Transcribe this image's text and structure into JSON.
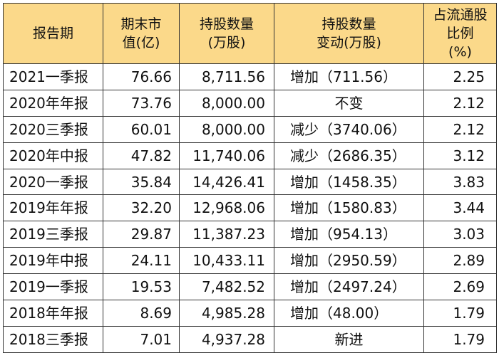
{
  "table": {
    "headers": [
      [
        "报告期"
      ],
      [
        "期末市",
        "值(亿)"
      ],
      [
        "持股数量",
        "(万股)"
      ],
      [
        "持股数量",
        "变动(万股)"
      ],
      [
        "占流通股",
        "比例",
        "(%)"
      ]
    ],
    "rows": [
      {
        "period": "2021一季报",
        "value": "76.66",
        "shares": "8,711.56",
        "change": "增加（711.56）",
        "ratio": "2.25"
      },
      {
        "period": "2020年年报",
        "value": "73.76",
        "shares": "8,000.00",
        "change": "不变",
        "ratio": "2.12"
      },
      {
        "period": "2020三季报",
        "value": "60.01",
        "shares": "8,000.00",
        "change": "减少（3740.06）",
        "ratio": "2.12"
      },
      {
        "period": "2020年中报",
        "value": "47.82",
        "shares": "11,740.06",
        "change": "减少（2686.35）",
        "ratio": "3.12"
      },
      {
        "period": "2020一季报",
        "value": "35.84",
        "shares": "14,426.41",
        "change": "增加（1458.35）",
        "ratio": "3.83"
      },
      {
        "period": "2019年年报",
        "value": "32.20",
        "shares": "12,968.06",
        "change": "增加（1580.83）",
        "ratio": "3.44"
      },
      {
        "period": "2019三季报",
        "value": "29.87",
        "shares": "11,387.23",
        "change": "增加（954.13）",
        "ratio": "3.03"
      },
      {
        "period": "2019年中报",
        "value": "24.11",
        "shares": "10,433.11",
        "change": "增加（2950.59）",
        "ratio": "2.89"
      },
      {
        "period": "2019一季报",
        "value": "19.53",
        "shares": "7,482.52",
        "change": "增加（2497.24）",
        "ratio": "2.69"
      },
      {
        "period": "2018年年报",
        "value": "8.69",
        "shares": "4,985.28",
        "change": "增加（48.00）",
        "ratio": "1.79"
      },
      {
        "period": "2018三季报",
        "value": "7.01",
        "shares": "4,937.28",
        "change": "新进",
        "ratio": "1.79"
      }
    ],
    "colors": {
      "header_bg": "#fbd98a",
      "border": "#333333",
      "text": "#111111"
    }
  }
}
